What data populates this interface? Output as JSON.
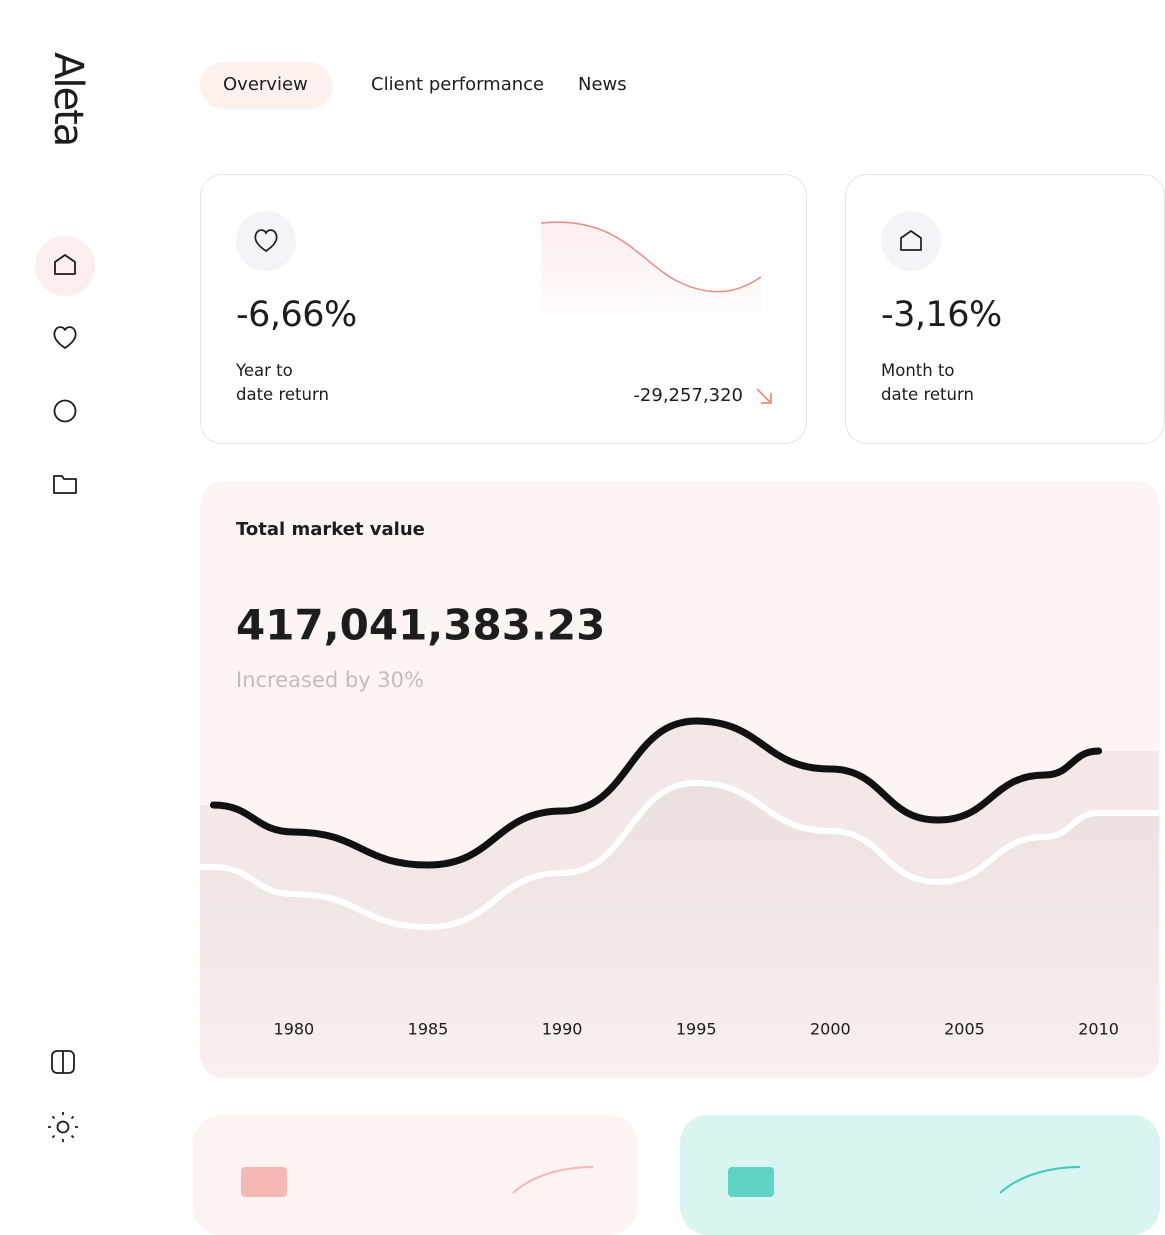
{
  "brand": "Aleta",
  "tabs": [
    "Overview",
    "Client performance",
    "News"
  ],
  "cards": [
    {
      "value": "-6,66%",
      "label": [
        "Year to",
        "date return"
      ],
      "amount": "-29,257,320"
    },
    {
      "value": "-3,16%",
      "label": [
        "Month to",
        "date return"
      ]
    }
  ],
  "chart_data": {
    "type": "line",
    "title": "Total market value",
    "total": "417,041,383.23",
    "subtitle": "Increased by 30%",
    "x": [
      1977,
      1980,
      1985,
      1990,
      1995,
      2000,
      2004,
      2008,
      2010
    ],
    "series": [
      {
        "color": "#111111",
        "values": [
          65,
          56,
          45,
          63,
          93,
          77,
          60,
          75,
          83
        ]
      }
    ],
    "xlim": [
      1976.5,
      2010.5
    ],
    "ylim": [
      0,
      100
    ],
    "xticks": [
      1980,
      1985,
      1990,
      1995,
      2000,
      2005,
      2010
    ]
  }
}
